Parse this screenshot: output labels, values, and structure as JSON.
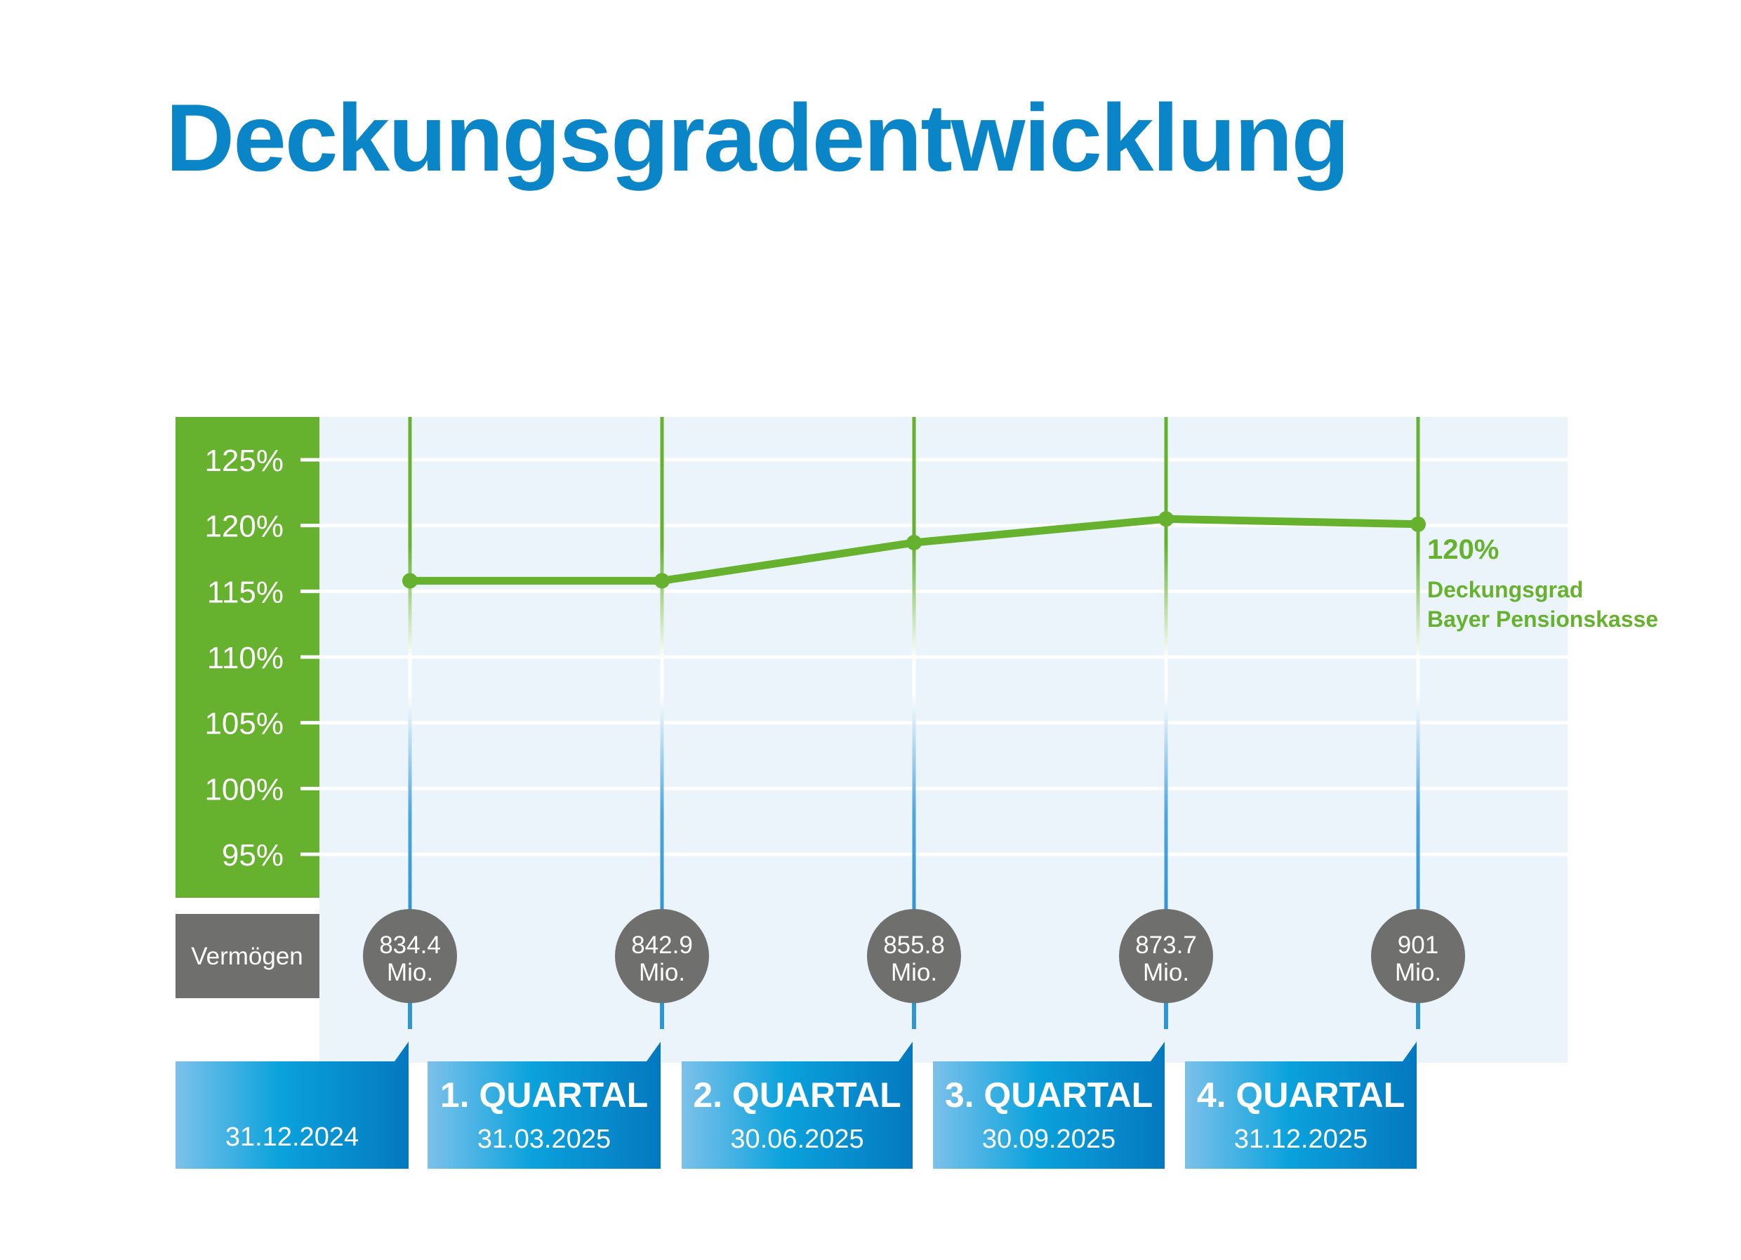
{
  "title": "Deckungsgradentwicklung",
  "colors": {
    "title": "#0a86c8",
    "green": "#66b22f",
    "gray": "#6f6f6e",
    "blue": "#0a86c8",
    "light_blue": "#7cc1ea",
    "panel": "#eaf4fa"
  },
  "chart_data": {
    "type": "line",
    "categories": [
      "31.12.2024",
      "31.03.2025",
      "30.06.2025",
      "30.09.2025",
      "31.12.2025"
    ],
    "series": [
      {
        "name": "Deckungsgrad Bayer Pensionskasse",
        "values": [
          115.8,
          115.8,
          118.7,
          120.5,
          120.1
        ],
        "unit": "%"
      }
    ],
    "y_ticks": [
      "125%",
      "120%",
      "115%",
      "110%",
      "105%",
      "100%",
      "95%"
    ],
    "y_tick_values": [
      125,
      120,
      115,
      110,
      105,
      100,
      95
    ],
    "ylim": [
      95,
      125
    ],
    "grid": true,
    "vermoegen_label": "Vermögen",
    "vermoegen": [
      {
        "value": "834.4",
        "unit": "Mio."
      },
      {
        "value": "842.9",
        "unit": "Mio."
      },
      {
        "value": "855.8",
        "unit": "Mio."
      },
      {
        "value": "873.7",
        "unit": "Mio."
      },
      {
        "value": "901",
        "unit": "Mio."
      }
    ],
    "periods": [
      {
        "label": "",
        "date": "31.12.2024"
      },
      {
        "label": "1. QUARTAL",
        "date": "31.03.2025"
      },
      {
        "label": "2. QUARTAL",
        "date": "30.06.2025"
      },
      {
        "label": "3. QUARTAL",
        "date": "30.09.2025"
      },
      {
        "label": "4. QUARTAL",
        "date": "31.12.2025"
      }
    ],
    "annotation": {
      "value": "120%",
      "label_line1": "Deckungsgrad",
      "label_line2": "Bayer Pensionskasse"
    }
  }
}
